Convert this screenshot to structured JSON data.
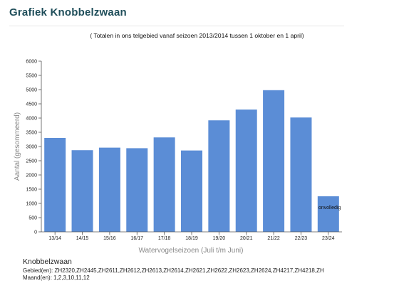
{
  "page": {
    "title": "Grafiek Knobbelzwaan",
    "subtitle": "( Totalen in ons telgebied vanaf seizoen 2013/2014 tussen 1 oktober en 1 april)"
  },
  "chart_data": {
    "type": "bar",
    "categories": [
      "13/14",
      "14/15",
      "15/16",
      "16/17",
      "17/18",
      "18/19",
      "19/20",
      "20/21",
      "21/22",
      "22/23",
      "23/24"
    ],
    "values": [
      3300,
      2870,
      2960,
      2940,
      3320,
      2860,
      3920,
      4300,
      4980,
      4020,
      1250
    ],
    "bar_labels": [
      "",
      "",
      "",
      "",
      "",
      "",
      "",
      "",
      "",
      "",
      "onvolledig"
    ],
    "xlabel": "Watervogelseizoen (Juli t/m Juni)",
    "ylabel": "Aantal (gesommeerd)",
    "ylim": [
      0,
      6000
    ],
    "yticks": [
      0,
      500,
      1000,
      1500,
      2000,
      2500,
      3000,
      3500,
      4000,
      4500,
      5000,
      5500,
      6000
    ],
    "bar_color": "#5b8dd6",
    "grid": false
  },
  "footer": {
    "species": "Knobbelzwaan",
    "gebied": "Gebied(en): ZH2320,ZH2445,ZH2611,ZH2612,ZH2613,ZH2614,ZH2621,ZH2622,ZH2623,ZH2624,ZH4217,ZH4218,ZH",
    "maand": "Maand(en): 1,2,3,10,11,12"
  }
}
